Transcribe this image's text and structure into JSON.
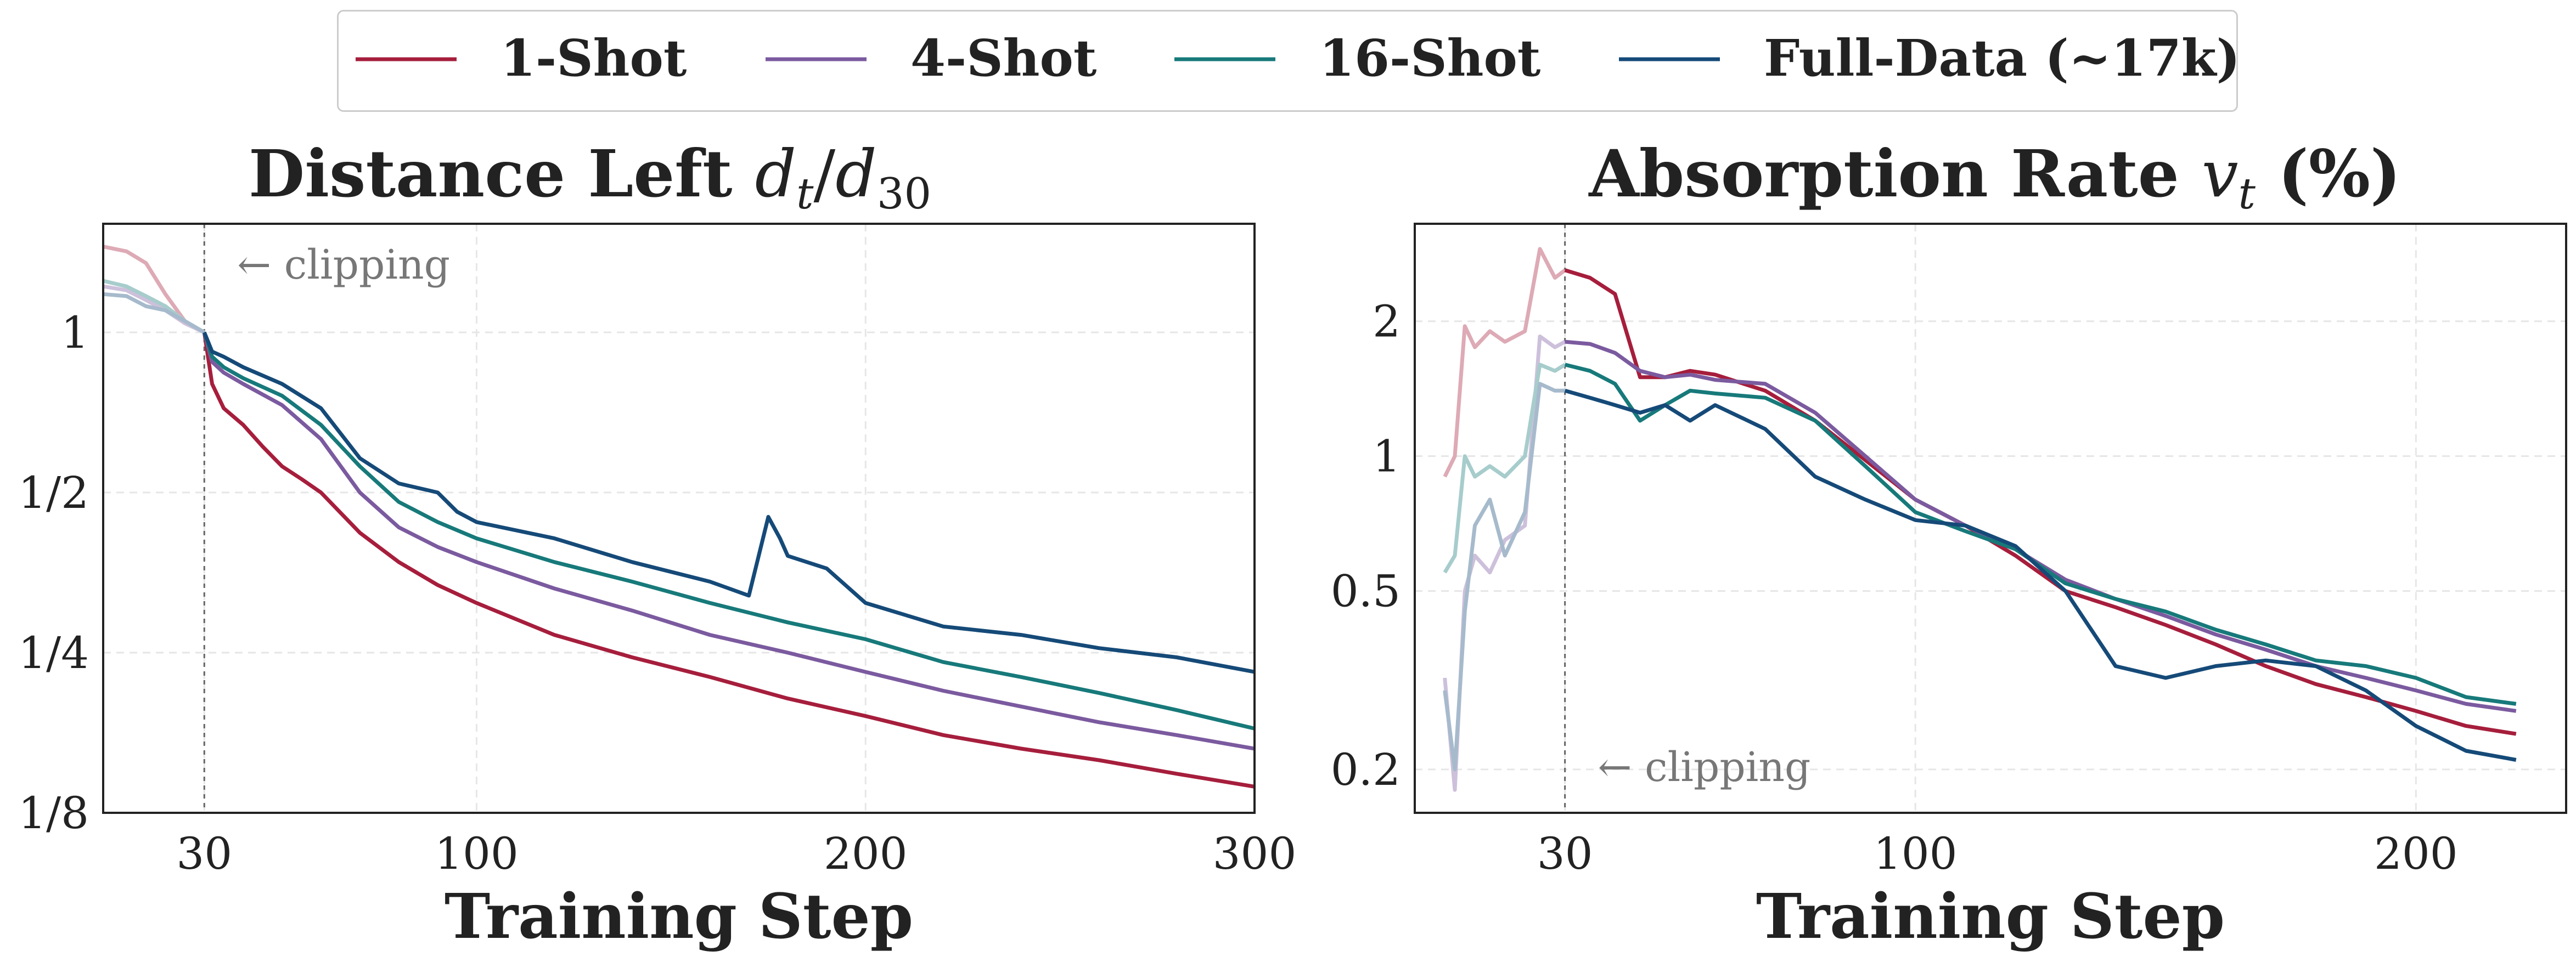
{
  "legend": [
    {
      "name": "1-Shot",
      "color": "#a61e3c"
    },
    {
      "name": "4-Shot",
      "color": "#7b5a9f"
    },
    {
      "name": "16-Shot",
      "color": "#17797a"
    },
    {
      "name": "Full-Data (~17k)",
      "color": "#154a78"
    }
  ],
  "chart_data": [
    {
      "type": "line",
      "title": "Distance Left d_t/d_30",
      "xlabel": "Training Step",
      "ylabel": "",
      "yscale": "log2",
      "xlim": [
        4,
        300
      ],
      "ylim": [
        0.125,
        1.6
      ],
      "xticks": [
        30,
        100,
        200,
        300
      ],
      "yticks": [
        1,
        0.5,
        0.25,
        0.125
      ],
      "ytick_labels": [
        "1",
        "1/2",
        "1/4",
        "1/8"
      ],
      "annotation": "← clipping",
      "clip_step": 30,
      "grid": true,
      "series": [
        {
          "name": "1-Shot",
          "x": [
            4,
            10,
            15,
            20,
            25,
            30,
            32,
            35,
            40,
            45,
            50,
            55,
            60,
            70,
            80,
            90,
            100,
            120,
            140,
            160,
            180,
            200,
            220,
            240,
            260,
            280,
            300
          ],
          "y": [
            1.45,
            1.42,
            1.35,
            1.18,
            1.05,
            1.0,
            0.8,
            0.72,
            0.67,
            0.61,
            0.56,
            0.53,
            0.5,
            0.42,
            0.37,
            0.335,
            0.31,
            0.27,
            0.245,
            0.225,
            0.205,
            0.19,
            0.175,
            0.165,
            0.157,
            0.148,
            0.14
          ]
        },
        {
          "name": "4-Shot",
          "x": [
            4,
            10,
            15,
            20,
            25,
            30,
            32,
            35,
            40,
            50,
            60,
            70,
            80,
            90,
            100,
            120,
            140,
            160,
            180,
            200,
            220,
            240,
            260,
            280,
            300
          ],
          "y": [
            1.22,
            1.2,
            1.15,
            1.1,
            1.04,
            1.0,
            0.88,
            0.84,
            0.8,
            0.73,
            0.63,
            0.5,
            0.43,
            0.395,
            0.37,
            0.33,
            0.3,
            0.27,
            0.25,
            0.23,
            0.212,
            0.198,
            0.185,
            0.175,
            0.165
          ]
        },
        {
          "name": "16-Shot",
          "x": [
            4,
            10,
            15,
            20,
            25,
            30,
            32,
            35,
            40,
            50,
            60,
            70,
            80,
            90,
            100,
            120,
            140,
            160,
            180,
            200,
            220,
            240,
            260,
            280,
            300
          ],
          "y": [
            1.25,
            1.22,
            1.17,
            1.12,
            1.05,
            1.0,
            0.9,
            0.86,
            0.82,
            0.76,
            0.67,
            0.56,
            0.48,
            0.44,
            0.41,
            0.37,
            0.34,
            0.31,
            0.285,
            0.265,
            0.24,
            0.225,
            0.21,
            0.195,
            0.18
          ]
        },
        {
          "name": "Full-Data (~17k)",
          "x": [
            4,
            10,
            15,
            20,
            25,
            30,
            32,
            35,
            40,
            50,
            60,
            70,
            80,
            90,
            95,
            100,
            120,
            140,
            160,
            170,
            175,
            178,
            180,
            190,
            200,
            220,
            240,
            260,
            280,
            300
          ],
          "y": [
            1.18,
            1.17,
            1.12,
            1.1,
            1.05,
            1.0,
            0.92,
            0.9,
            0.86,
            0.8,
            0.72,
            0.58,
            0.52,
            0.5,
            0.46,
            0.44,
            0.41,
            0.37,
            0.34,
            0.32,
            0.45,
            0.41,
            0.38,
            0.36,
            0.31,
            0.28,
            0.27,
            0.255,
            0.245,
            0.23
          ]
        }
      ]
    },
    {
      "type": "line",
      "title": "Absorption Rate v_t (%)",
      "xlabel": "Training Step",
      "ylabel": "",
      "yscale": "log",
      "xlim": [
        0,
        230
      ],
      "ylim": [
        0.16,
        3.3
      ],
      "xticks": [
        30,
        100,
        200
      ],
      "yticks": [
        2,
        1,
        0.5,
        0.2
      ],
      "ytick_labels": [
        "2",
        "1",
        "0.5",
        "0.2"
      ],
      "annotation": "← clipping",
      "clip_step": 30,
      "grid": true,
      "series": [
        {
          "name": "1-Shot",
          "x": [
            6,
            8,
            10,
            12,
            15,
            18,
            22,
            25,
            28,
            30,
            35,
            40,
            45,
            50,
            55,
            60,
            70,
            80,
            90,
            100,
            110,
            120,
            130,
            140,
            150,
            160,
            170,
            180,
            190,
            200,
            210,
            220
          ],
          "y": [
            0.9,
            1.0,
            1.95,
            1.75,
            1.9,
            1.8,
            1.9,
            2.9,
            2.5,
            2.6,
            2.5,
            2.3,
            1.5,
            1.5,
            1.55,
            1.52,
            1.4,
            1.2,
            0.98,
            0.8,
            0.7,
            0.6,
            0.5,
            0.46,
            0.42,
            0.38,
            0.34,
            0.31,
            0.29,
            0.27,
            0.25,
            0.24
          ]
        },
        {
          "name": "4-Shot",
          "x": [
            6,
            8,
            10,
            12,
            15,
            18,
            22,
            25,
            28,
            30,
            35,
            40,
            45,
            50,
            55,
            60,
            70,
            80,
            90,
            100,
            110,
            120,
            130,
            140,
            150,
            160,
            170,
            180,
            190,
            200,
            210,
            220
          ],
          "y": [
            0.32,
            0.18,
            0.5,
            0.6,
            0.55,
            0.65,
            0.7,
            1.85,
            1.75,
            1.8,
            1.78,
            1.7,
            1.55,
            1.5,
            1.52,
            1.48,
            1.45,
            1.25,
            1.0,
            0.8,
            0.7,
            0.62,
            0.53,
            0.48,
            0.44,
            0.4,
            0.37,
            0.34,
            0.32,
            0.3,
            0.28,
            0.27
          ]
        },
        {
          "name": "16-Shot",
          "x": [
            6,
            8,
            10,
            12,
            15,
            18,
            22,
            25,
            28,
            30,
            35,
            40,
            45,
            50,
            55,
            60,
            70,
            80,
            90,
            100,
            110,
            120,
            130,
            140,
            150,
            160,
            170,
            180,
            190,
            200,
            210,
            220
          ],
          "y": [
            0.55,
            0.6,
            1.0,
            0.9,
            0.95,
            0.9,
            1.0,
            1.6,
            1.55,
            1.6,
            1.55,
            1.45,
            1.2,
            1.3,
            1.4,
            1.38,
            1.35,
            1.2,
            0.95,
            0.75,
            0.68,
            0.62,
            0.52,
            0.48,
            0.45,
            0.41,
            0.38,
            0.35,
            0.34,
            0.32,
            0.29,
            0.28
          ]
        },
        {
          "name": "Full-Data (~17k)",
          "x": [
            6,
            8,
            10,
            12,
            15,
            18,
            22,
            25,
            28,
            30,
            35,
            40,
            45,
            50,
            55,
            60,
            70,
            80,
            90,
            100,
            110,
            120,
            130,
            140,
            150,
            160,
            170,
            180,
            190,
            200,
            210,
            220
          ],
          "y": [
            0.3,
            0.2,
            0.45,
            0.7,
            0.8,
            0.6,
            0.75,
            1.45,
            1.4,
            1.4,
            1.35,
            1.3,
            1.25,
            1.3,
            1.2,
            1.3,
            1.15,
            0.9,
            0.8,
            0.72,
            0.7,
            0.63,
            0.5,
            0.34,
            0.32,
            0.34,
            0.35,
            0.34,
            0.3,
            0.25,
            0.22,
            0.21
          ]
        }
      ]
    }
  ]
}
